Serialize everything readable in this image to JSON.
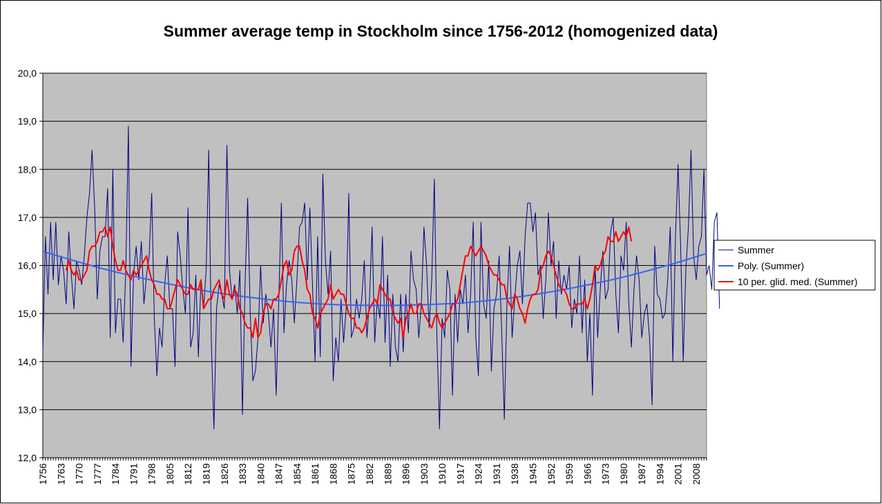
{
  "chart_data": {
    "type": "line",
    "title": "Summer average temp in Stockholm since 1756-2012 (homogenized data)",
    "xlabel": "",
    "ylabel": "",
    "xlim": [
      1756,
      2012
    ],
    "ylim": [
      12.0,
      20.0
    ],
    "y_ticks": [
      "12,0",
      "13,0",
      "14,0",
      "15,0",
      "16,0",
      "17,0",
      "18,0",
      "19,0",
      "20,0"
    ],
    "x_ticks": [
      "1756",
      "1763",
      "1770",
      "1777",
      "1784",
      "1791",
      "1798",
      "1805",
      "1812",
      "1819",
      "1826",
      "1833",
      "1840",
      "1847",
      "1854",
      "1861",
      "1868",
      "1875",
      "1882",
      "1889",
      "1896",
      "1903",
      "1910",
      "1917",
      "1924",
      "1931",
      "1938",
      "1945",
      "1952",
      "1959",
      "1966",
      "1973",
      "1980",
      "1987",
      "1994",
      "2001",
      "2008"
    ],
    "grid": true,
    "legend_position": "right",
    "colors": {
      "plot_background": "#c0c0c0",
      "summer": "#000080",
      "poly": "#3366ee",
      "moving_avg": "#ff0000"
    },
    "series": [
      {
        "name": "Summer",
        "x_start": 1756,
        "values": [
          14.2,
          16.6,
          15.4,
          16.9,
          15.7,
          16.9,
          15.6,
          16.2,
          15.9,
          15.2,
          16.7,
          15.8,
          15.1,
          16.1,
          15.9,
          15.6,
          16.2,
          17.0,
          17.5,
          18.4,
          17.2,
          15.3,
          16.3,
          16.6,
          16.6,
          17.6,
          14.5,
          18.0,
          14.6,
          15.3,
          15.3,
          14.4,
          15.9,
          18.9,
          13.9,
          15.8,
          16.4,
          15.7,
          16.5,
          15.2,
          15.8,
          16.2,
          17.5,
          14.9,
          13.7,
          14.7,
          14.3,
          15.6,
          16.2,
          15.1,
          15.1,
          13.9,
          16.7,
          16.2,
          15.5,
          15.0,
          17.2,
          14.3,
          14.6,
          15.8,
          14.1,
          15.7,
          15.1,
          15.9,
          18.4,
          14.4,
          12.6,
          15.1,
          15.6,
          15.4,
          15.1,
          18.5,
          15.9,
          15.3,
          15.6,
          15.0,
          15.9,
          12.9,
          15.6,
          17.4,
          15.0,
          13.6,
          13.8,
          14.5,
          16.0,
          14.8,
          15.4,
          15.0,
          14.3,
          15.1,
          13.3,
          15.3,
          17.3,
          14.6,
          15.6,
          16.1,
          15.7,
          14.8,
          15.7,
          16.8,
          16.9,
          17.3,
          15.7,
          17.2,
          15.6,
          14.0,
          16.6,
          14.1,
          17.9,
          16.1,
          15.4,
          16.3,
          13.6,
          14.5,
          14.0,
          15.3,
          14.4,
          15.1,
          17.5,
          14.5,
          14.7,
          15.3,
          14.9,
          15.3,
          16.1,
          14.5,
          15.3,
          16.8,
          14.4,
          15.3,
          14.9,
          16.6,
          14.4,
          15.8,
          13.9,
          15.4,
          14.3,
          14.0,
          15.4,
          14.2,
          15.4,
          14.6,
          16.3,
          15.7,
          15.5,
          14.5,
          15.2,
          16.8,
          16.0,
          14.7,
          15.7,
          17.8,
          14.5,
          12.6,
          14.9,
          14.5,
          15.9,
          15.5,
          13.3,
          15.4,
          14.4,
          15.5,
          15.2,
          15.8,
          14.6,
          15.4,
          16.9,
          14.5,
          13.7,
          16.9,
          15.2,
          14.9,
          16.1,
          13.8,
          15.1,
          15.4,
          16.2,
          14.6,
          12.8,
          15.2,
          16.4,
          14.5,
          15.3,
          16.0,
          16.3,
          15.2,
          16.6,
          17.3,
          17.3,
          16.7,
          17.1,
          15.8,
          16.0,
          14.9,
          15.7,
          17.1,
          16.0,
          16.5,
          14.9,
          16.1,
          15.4,
          15.8,
          15.5,
          16.0,
          14.7,
          15.3,
          15.0,
          16.2,
          14.6,
          15.7,
          14.0,
          15.0,
          13.3,
          16.0,
          14.5,
          15.5,
          16.3,
          15.3,
          15.5,
          16.7,
          17.0,
          15.4,
          14.6,
          16.2,
          15.9,
          16.9,
          15.2,
          14.3,
          15.5,
          16.2,
          15.7,
          14.5,
          15.0,
          15.2,
          14.5,
          13.1,
          16.4,
          15.4,
          15.3,
          14.9,
          15.0,
          15.7,
          16.8,
          14.0,
          16.6,
          18.1,
          16.4,
          14.0,
          15.9,
          16.8,
          18.4,
          16.2,
          15.7,
          16.4,
          16.6,
          18.0,
          15.8,
          16.0,
          15.5,
          16.9,
          17.1,
          15.1
        ]
      },
      {
        "name": "Poly. (Summer)",
        "type": "polynomial",
        "x": [
          1756,
          1780,
          1800,
          1820,
          1840,
          1860,
          1880,
          1900,
          1920,
          1940,
          1960,
          1980,
          2000,
          2012
        ],
        "values": [
          16.29,
          15.92,
          15.67,
          15.46,
          15.31,
          15.21,
          15.17,
          15.18,
          15.23,
          15.35,
          15.53,
          15.76,
          16.05,
          16.25
        ]
      },
      {
        "name": "10 per. glid. med. (Summer)",
        "x_start": 1765,
        "values": [
          15.9,
          16.1,
          15.9,
          15.8,
          15.9,
          15.7,
          15.7,
          15.8,
          15.9,
          16.3,
          16.4,
          16.4,
          16.5,
          16.7,
          16.7,
          16.8,
          16.6,
          16.8,
          16.4,
          16.1,
          15.9,
          15.9,
          16.1,
          15.9,
          15.8,
          15.7,
          15.9,
          15.8,
          15.9,
          16.0,
          16.1,
          16.2,
          15.9,
          15.7,
          15.6,
          15.4,
          15.4,
          15.3,
          15.3,
          15.1,
          15.1,
          15.3,
          15.5,
          15.7,
          15.6,
          15.5,
          15.4,
          15.4,
          15.6,
          15.5,
          15.5,
          15.5,
          15.7,
          15.1,
          15.2,
          15.3,
          15.3,
          15.5,
          15.6,
          15.7,
          15.4,
          15.3,
          15.7,
          15.4,
          15.3,
          15.5,
          15.4,
          15.1,
          15.0,
          14.8,
          14.7,
          14.7,
          14.5,
          14.9,
          14.5,
          14.6,
          15.0,
          15.2,
          15.2,
          15.1,
          15.3,
          15.3,
          15.4,
          15.7,
          16.0,
          16.1,
          15.8,
          15.9,
          16.3,
          16.4,
          16.4,
          16.1,
          15.9,
          15.5,
          15.4,
          15.0,
          14.9,
          14.7,
          15.0,
          15.1,
          15.2,
          15.3,
          15.6,
          15.3,
          15.4,
          15.5,
          15.4,
          15.4,
          15.2,
          15.0,
          14.9,
          14.9,
          14.7,
          14.7,
          14.6,
          14.7,
          14.9,
          15.1,
          15.2,
          15.3,
          15.2,
          15.6,
          15.5,
          15.4,
          15.3,
          15.3,
          15.0,
          14.9,
          14.8,
          14.9,
          14.5,
          14.9,
          15.0,
          15.2,
          15.0,
          15.0,
          15.2,
          15.2,
          15.0,
          14.9,
          14.8,
          14.7,
          14.9,
          15.0,
          14.8,
          14.7,
          14.8,
          14.9,
          15.0,
          15.2,
          15.2,
          15.3,
          15.6,
          15.9,
          16.2,
          16.2,
          16.4,
          16.3,
          16.2,
          16.3,
          16.4,
          16.3,
          16.2,
          16.0,
          15.9,
          15.8,
          15.8,
          15.7,
          15.6,
          15.6,
          15.3,
          15.2,
          15.1,
          15.4,
          15.3,
          15.1,
          15.0,
          14.8,
          15.1,
          15.3,
          15.4,
          15.4,
          15.5,
          15.9,
          16.0,
          16.2,
          16.3,
          16.2,
          16.0,
          15.8,
          15.6,
          15.5,
          15.5,
          15.4,
          15.2,
          15.1,
          15.1,
          15.2,
          15.2,
          15.2,
          15.3,
          15.1,
          15.3,
          15.6,
          16.0,
          15.9,
          16.0,
          16.2,
          16.3,
          16.6,
          16.5,
          16.5,
          16.7,
          16.5,
          16.6,
          16.7,
          16.6,
          16.8,
          16.5
        ]
      }
    ]
  }
}
